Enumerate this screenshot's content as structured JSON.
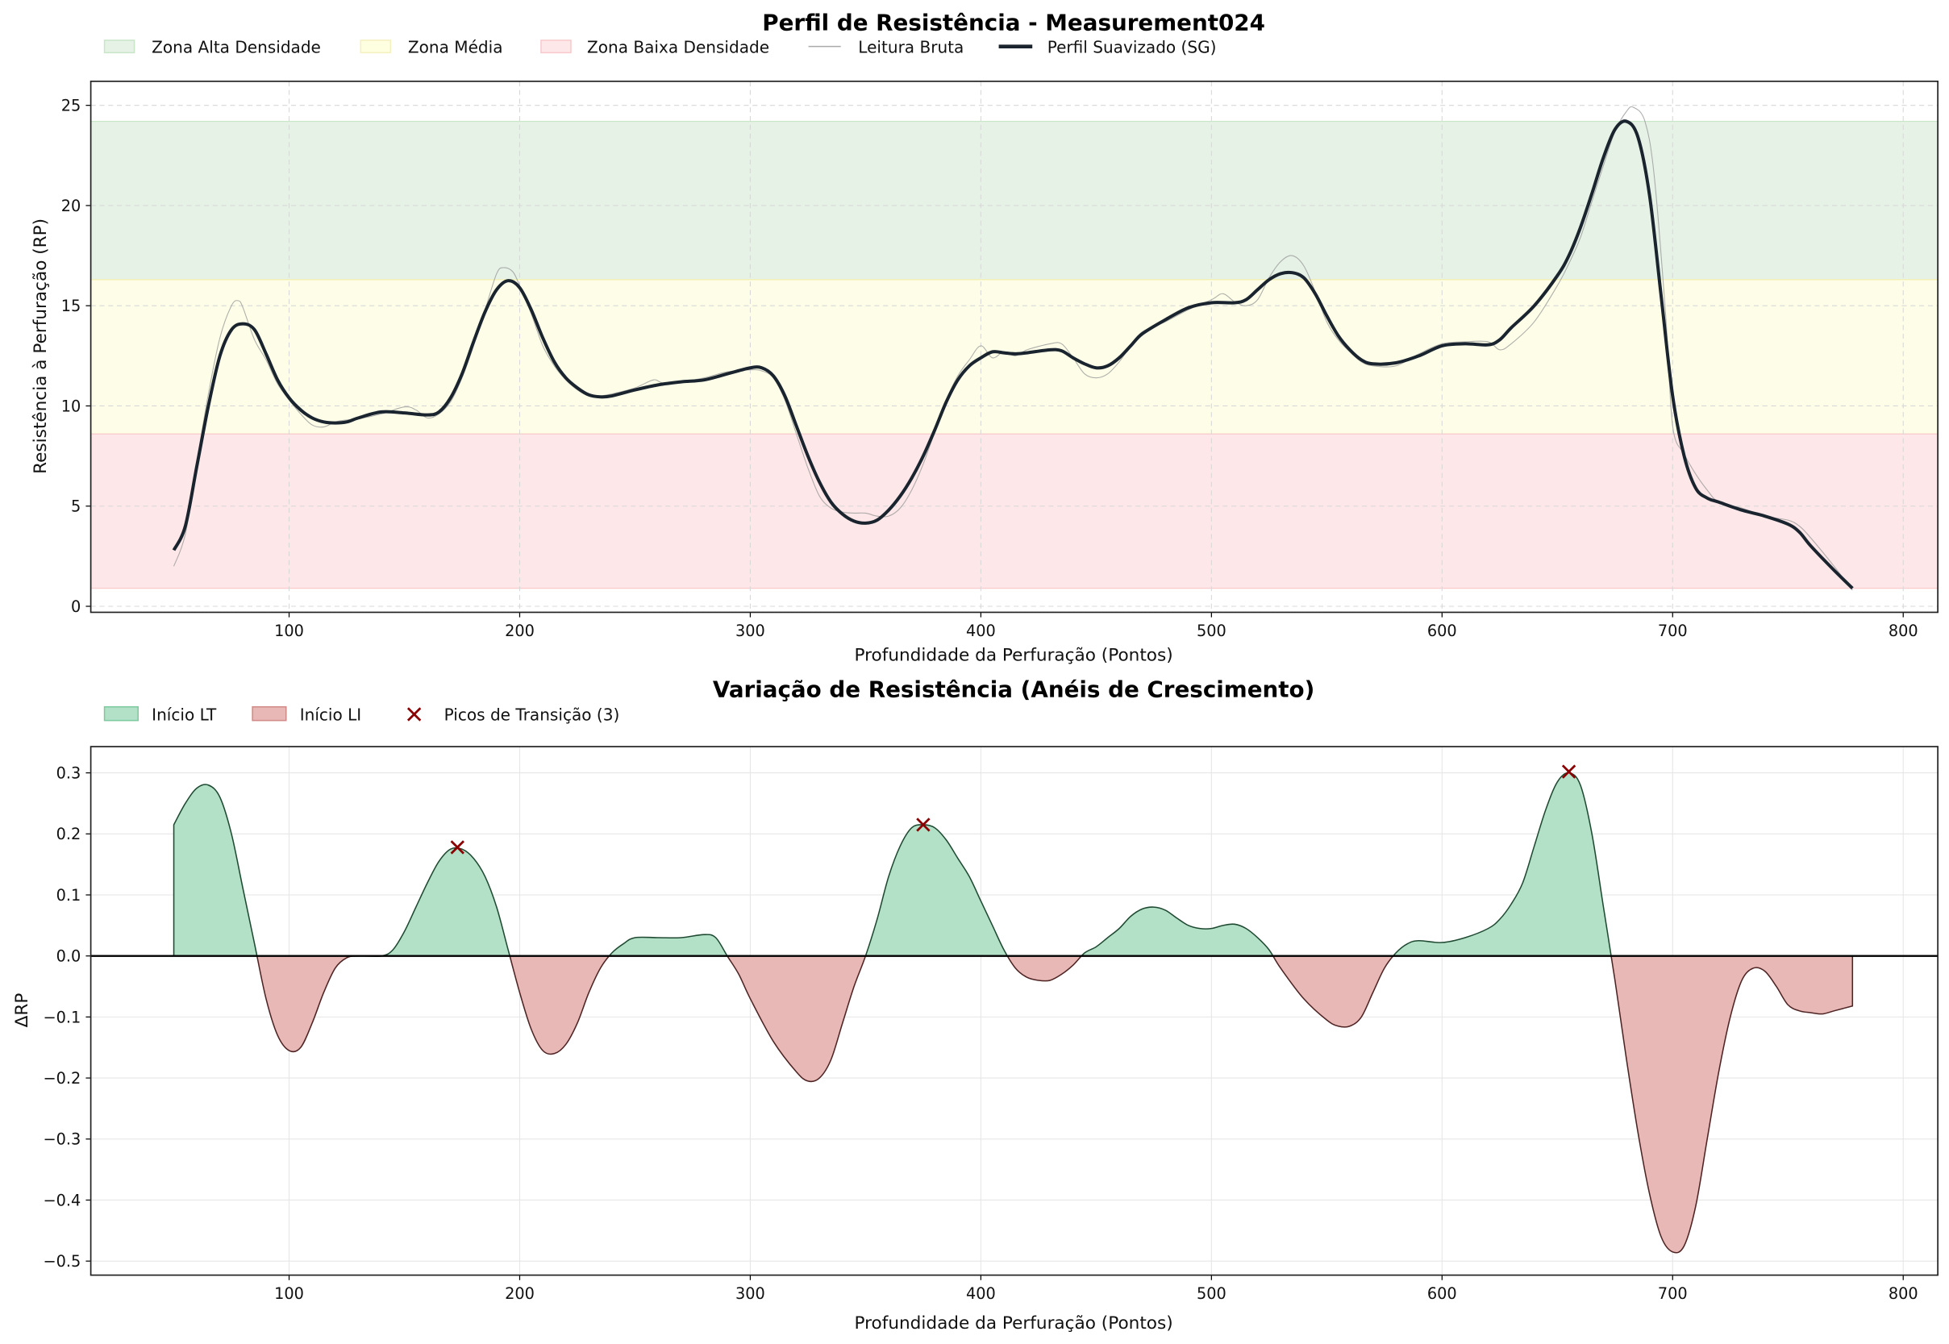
{
  "colors": {
    "zone_high": "#e6f2e6",
    "zone_high_edge": "#c9e6c9",
    "zone_mid": "#fefee8",
    "zone_mid_edge": "#f5f0b0",
    "zone_low": "#fde7e8",
    "zone_low_edge": "#f8c9cc",
    "raw": "#9a9a9a",
    "smooth": "#1a242f",
    "pos_fill": "#b3e1c8",
    "pos_edge": "#1f4a32",
    "neg_fill": "#e8b8b6",
    "neg_edge": "#4d2323",
    "peak": "#8b0000"
  },
  "chart_data": [
    {
      "type": "line",
      "title": "Perfil de Resistência - Measurement024",
      "xlabel": "Profundidade da Perfuração (Pontos)",
      "ylabel": "Resistência à Perfuração (RP)",
      "xlim": [
        14,
        815
      ],
      "ylim": [
        -0.3,
        26.2
      ],
      "xticks": [
        100,
        200,
        300,
        400,
        500,
        600,
        700,
        800
      ],
      "yticks": [
        0,
        5,
        10,
        15,
        20,
        25
      ],
      "grid": true,
      "legend": {
        "placement": "top-left, outside",
        "entries": [
          "Zona Alta Densidade",
          "Zona Média",
          "Zona Baixa Densidade",
          "Leitura Bruta",
          "Perfil Suavizado (SG)"
        ]
      },
      "zones": [
        {
          "name": "Zona Alta Densidade",
          "from": 16.3,
          "to": 24.2
        },
        {
          "name": "Zona Média",
          "from": 8.6,
          "to": 16.3
        },
        {
          "name": "Zona Baixa Densidade",
          "from": 0.9,
          "to": 8.6
        }
      ],
      "series": [
        {
          "name": "Perfil Suavizado (SG)",
          "x": [
            50,
            55,
            60,
            65,
            70,
            75,
            80,
            85,
            90,
            95,
            100,
            105,
            110,
            115,
            120,
            125,
            130,
            140,
            150,
            160,
            165,
            170,
            175,
            180,
            185,
            190,
            195,
            200,
            205,
            210,
            215,
            220,
            225,
            230,
            235,
            240,
            250,
            260,
            270,
            280,
            290,
            300,
            305,
            310,
            315,
            320,
            325,
            330,
            335,
            340,
            345,
            350,
            355,
            360,
            365,
            370,
            375,
            380,
            385,
            390,
            395,
            400,
            405,
            410,
            415,
            420,
            430,
            435,
            440,
            445,
            450,
            455,
            460,
            465,
            470,
            480,
            490,
            500,
            510,
            515,
            520,
            525,
            530,
            535,
            540,
            545,
            550,
            555,
            560,
            565,
            570,
            580,
            590,
            600,
            610,
            620,
            625,
            630,
            640,
            650,
            655,
            660,
            665,
            670,
            675,
            680,
            685,
            690,
            695,
            700,
            705,
            710,
            715,
            720,
            730,
            740,
            750,
            755,
            760,
            770,
            778
          ],
          "y": [
            2.8,
            4,
            7,
            10,
            12.5,
            13.8,
            14.1,
            13.8,
            12.6,
            11.3,
            10.4,
            9.8,
            9.4,
            9.2,
            9.15,
            9.2,
            9.4,
            9.7,
            9.65,
            9.55,
            9.7,
            10.4,
            11.6,
            13.2,
            14.7,
            15.8,
            16.25,
            15.9,
            14.8,
            13.4,
            12.2,
            11.4,
            10.9,
            10.55,
            10.45,
            10.5,
            10.8,
            11.05,
            11.2,
            11.3,
            11.6,
            11.9,
            11.9,
            11.5,
            10.5,
            9,
            7.5,
            6.2,
            5.2,
            4.6,
            4.25,
            4.15,
            4.3,
            4.8,
            5.5,
            6.4,
            7.5,
            8.8,
            10.2,
            11.3,
            12,
            12.4,
            12.7,
            12.65,
            12.6,
            12.65,
            12.8,
            12.75,
            12.4,
            12.1,
            11.9,
            12,
            12.4,
            13,
            13.6,
            14.3,
            14.9,
            15.15,
            15.15,
            15.3,
            15.8,
            16.3,
            16.6,
            16.65,
            16.4,
            15.6,
            14.5,
            13.5,
            12.8,
            12.3,
            12.1,
            12.15,
            12.5,
            13,
            13.1,
            13.05,
            13.3,
            13.9,
            15,
            16.5,
            17.5,
            18.9,
            20.6,
            22.4,
            23.8,
            24.2,
            23.4,
            20.5,
            15.5,
            10.5,
            7.5,
            5.9,
            5.4,
            5.2,
            4.8,
            4.5,
            4.1,
            3.7,
            3,
            1.8,
            0.9
          ]
        },
        {
          "name": "Leitura Bruta",
          "x": [
            50,
            55,
            60,
            65,
            70,
            75,
            78,
            80,
            85,
            90,
            95,
            100,
            105,
            110,
            115,
            120,
            125,
            130,
            140,
            150,
            155,
            160,
            165,
            170,
            175,
            180,
            185,
            190,
            193,
            197,
            200,
            205,
            210,
            215,
            220,
            225,
            230,
            235,
            240,
            250,
            258,
            262,
            270,
            280,
            290,
            300,
            305,
            310,
            315,
            320,
            325,
            330,
            335,
            340,
            345,
            350,
            355,
            360,
            365,
            370,
            375,
            380,
            385,
            390,
            395,
            400,
            405,
            410,
            415,
            420,
            430,
            435,
            440,
            445,
            450,
            455,
            460,
            465,
            470,
            480,
            490,
            500,
            505,
            510,
            515,
            520,
            525,
            530,
            535,
            540,
            545,
            550,
            555,
            560,
            565,
            570,
            580,
            590,
            600,
            610,
            620,
            625,
            630,
            640,
            650,
            655,
            660,
            665,
            670,
            675,
            680,
            683,
            688,
            692,
            697,
            700,
            705,
            710,
            715,
            720,
            730,
            740,
            750,
            755,
            760,
            770,
            778
          ],
          "y": [
            2.0,
            3.6,
            7.2,
            10.6,
            13.4,
            15.0,
            15.25,
            14.9,
            13.3,
            12.3,
            11.1,
            10.3,
            9.6,
            9.05,
            8.95,
            9.2,
            9.3,
            9.35,
            9.6,
            9.95,
            9.8,
            9.4,
            9.6,
            10.2,
            11.4,
            13.0,
            14.8,
            16.6,
            16.9,
            16.7,
            16.0,
            14.6,
            13.0,
            12.0,
            11.3,
            10.8,
            10.5,
            10.5,
            10.6,
            10.9,
            11.3,
            11.15,
            11.2,
            11.4,
            11.7,
            11.8,
            11.75,
            11.4,
            10.3,
            8.6,
            6.9,
            5.5,
            4.9,
            4.7,
            4.65,
            4.65,
            4.5,
            4.5,
            4.9,
            5.8,
            7.1,
            8.7,
            10.3,
            11.5,
            12.3,
            13.0,
            12.4,
            12.7,
            12.5,
            12.8,
            13.1,
            13.1,
            12.4,
            11.6,
            11.4,
            11.6,
            12.2,
            13.0,
            13.7,
            14.2,
            14.8,
            15.3,
            15.6,
            15.2,
            15.0,
            15.3,
            16.4,
            17.2,
            17.5,
            17.0,
            15.7,
            14.2,
            13.3,
            12.7,
            12.2,
            12.0,
            12.0,
            12.6,
            13.1,
            13.2,
            13.2,
            12.8,
            13.1,
            14.2,
            16.0,
            17.1,
            18.4,
            20.2,
            22.0,
            23.7,
            24.7,
            24.9,
            24.2,
            21.5,
            14.5,
            9.0,
            7.6,
            6.6,
            5.8,
            5.2,
            4.9,
            4.5,
            4.3,
            4.0,
            3.4,
            2.0,
            0.8
          ]
        }
      ]
    },
    {
      "type": "area",
      "title": "Variação de Resistência (Anéis de Crescimento)",
      "xlabel": "Profundidade da Perfuração (Pontos)",
      "ylabel": "ΔRP",
      "xlim": [
        14,
        815
      ],
      "ylim": [
        -0.523,
        0.343
      ],
      "xticks": [
        100,
        200,
        300,
        400,
        500,
        600,
        700,
        800
      ],
      "yticks": [
        -0.5,
        -0.4,
        -0.3,
        -0.2,
        -0.1,
        0.0,
        0.1,
        0.2,
        0.3
      ],
      "ytick_labels": [
        "−0.5",
        "−0.4",
        "−0.3",
        "−0.2",
        "−0.1",
        "0.0",
        "0.1",
        "0.2",
        "0.3"
      ],
      "grid": true,
      "legend": {
        "placement": "top-left, outside",
        "entries": [
          "Início LT",
          "Início LI",
          "Picos de Transição (3)"
        ]
      },
      "series": {
        "name": "ΔRP",
        "x": [
          50,
          55,
          60,
          65,
          70,
          75,
          80,
          85,
          90,
          95,
          100,
          105,
          110,
          115,
          120,
          125,
          130,
          140,
          145,
          150,
          155,
          160,
          165,
          170,
          175,
          180,
          185,
          190,
          195,
          200,
          205,
          210,
          215,
          220,
          225,
          230,
          235,
          240,
          245,
          250,
          260,
          270,
          280,
          285,
          290,
          295,
          300,
          310,
          320,
          325,
          330,
          335,
          340,
          345,
          350,
          355,
          360,
          365,
          370,
          375,
          380,
          385,
          390,
          395,
          400,
          405,
          410,
          415,
          420,
          425,
          430,
          435,
          440,
          445,
          450,
          455,
          460,
          465,
          470,
          475,
          480,
          485,
          490,
          495,
          500,
          505,
          510,
          515,
          520,
          525,
          530,
          540,
          550,
          555,
          560,
          565,
          570,
          575,
          580,
          585,
          590,
          600,
          610,
          620,
          625,
          630,
          635,
          640,
          645,
          650,
          655,
          660,
          665,
          670,
          675,
          680,
          685,
          690,
          695,
          700,
          705,
          710,
          715,
          720,
          725,
          730,
          735,
          740,
          745,
          750,
          755,
          760,
          765,
          770,
          778
        ],
        "y": [
          0.215,
          0.25,
          0.275,
          0.28,
          0.26,
          0.2,
          0.11,
          0.02,
          -0.07,
          -0.13,
          -0.155,
          -0.15,
          -0.11,
          -0.06,
          -0.02,
          -0.003,
          0,
          0,
          0.01,
          0.04,
          0.08,
          0.12,
          0.155,
          0.175,
          0.175,
          0.16,
          0.13,
          0.08,
          0.01,
          -0.06,
          -0.12,
          -0.155,
          -0.16,
          -0.145,
          -0.11,
          -0.06,
          -0.02,
          0.005,
          0.02,
          0.03,
          0.03,
          0.03,
          0.035,
          0.03,
          0.0,
          -0.03,
          -0.07,
          -0.14,
          -0.19,
          -0.205,
          -0.2,
          -0.17,
          -0.11,
          -0.05,
          0.0,
          0.06,
          0.13,
          0.18,
          0.21,
          0.215,
          0.21,
          0.19,
          0.16,
          0.13,
          0.09,
          0.05,
          0.01,
          -0.02,
          -0.035,
          -0.04,
          -0.04,
          -0.03,
          -0.015,
          0.005,
          0.015,
          0.03,
          0.045,
          0.065,
          0.077,
          0.08,
          0.075,
          0.062,
          0.05,
          0.045,
          0.045,
          0.05,
          0.052,
          0.045,
          0.03,
          0.01,
          -0.02,
          -0.07,
          -0.105,
          -0.115,
          -0.115,
          -0.1,
          -0.06,
          -0.02,
          0.005,
          0.02,
          0.025,
          0.022,
          0.03,
          0.045,
          0.06,
          0.085,
          0.12,
          0.18,
          0.24,
          0.285,
          0.3,
          0.28,
          0.2,
          0.08,
          -0.04,
          -0.17,
          -0.29,
          -0.39,
          -0.46,
          -0.485,
          -0.475,
          -0.41,
          -0.3,
          -0.19,
          -0.1,
          -0.04,
          -0.02,
          -0.025,
          -0.05,
          -0.08,
          -0.09,
          -0.093,
          -0.095,
          -0.09,
          -0.082
        ]
      },
      "peaks": {
        "name": "Picos de Transição (3)",
        "x": [
          173,
          375,
          655
        ],
        "y": [
          0.178,
          0.215,
          0.302
        ]
      }
    }
  ]
}
